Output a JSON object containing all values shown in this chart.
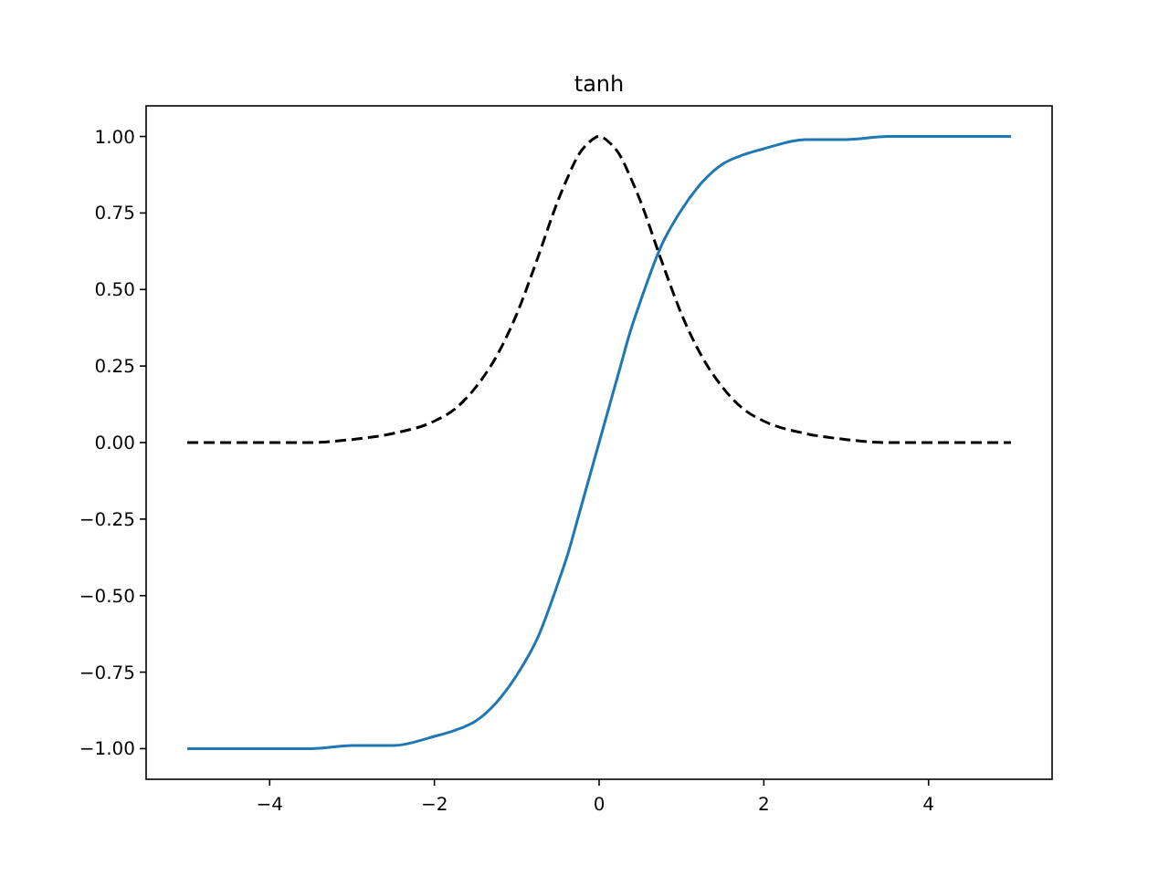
{
  "chart_data": {
    "type": "line",
    "title": "tanh",
    "x": [
      -5,
      -4,
      -3.5,
      -3,
      -2.5,
      -2,
      -1.75,
      -1.5,
      -1.25,
      -1,
      -0.75,
      -0.5,
      -0.375,
      -0.25,
      -0.125,
      0,
      0.125,
      0.25,
      0.375,
      0.5,
      0.75,
      1,
      1.25,
      1.5,
      1.75,
      2,
      2.5,
      3,
      3.5,
      4,
      5
    ],
    "series": [
      {
        "color": "#1f77b4",
        "line_style": "solid",
        "values": [
          -1.0,
          -1.0,
          -1.0,
          -0.99,
          -0.99,
          -0.96,
          -0.94,
          -0.91,
          -0.85,
          -0.76,
          -0.64,
          -0.46,
          -0.36,
          -0.24,
          -0.12,
          0.0,
          0.12,
          0.24,
          0.36,
          0.46,
          0.64,
          0.76,
          0.85,
          0.91,
          0.94,
          0.96,
          0.99,
          0.99,
          1.0,
          1.0,
          1.0
        ]
      },
      {
        "color": "#000000",
        "line_style": "dashed",
        "values": [
          0.0,
          0.0,
          0.0,
          0.01,
          0.03,
          0.07,
          0.11,
          0.18,
          0.28,
          0.42,
          0.6,
          0.79,
          0.87,
          0.94,
          0.98,
          1.0,
          0.98,
          0.94,
          0.87,
          0.79,
          0.6,
          0.42,
          0.28,
          0.18,
          0.11,
          0.07,
          0.03,
          0.01,
          0.0,
          0.0,
          0.0
        ]
      }
    ],
    "xlim": [
      -5.5,
      5.5
    ],
    "xticks": [
      {
        "value": -4,
        "label": "−4"
      },
      {
        "value": -2,
        "label": "−2"
      },
      0,
      2,
      4
    ],
    "ylim": [
      -1.1,
      1.1
    ],
    "yticks": [
      {
        "value": -1,
        "label": "−1.00"
      },
      {
        "value": -0.75,
        "label": "−0.75"
      },
      {
        "value": -0.5,
        "label": "−0.50"
      },
      {
        "value": -0.25,
        "label": "−0.25"
      },
      {
        "value": 0,
        "label": "0.00"
      },
      {
        "value": 0.25,
        "label": "0.25"
      },
      {
        "value": 0.5,
        "label": "0.50"
      },
      {
        "value": 0.75,
        "label": "0.75"
      },
      {
        "value": 1,
        "label": "1.00"
      }
    ]
  }
}
